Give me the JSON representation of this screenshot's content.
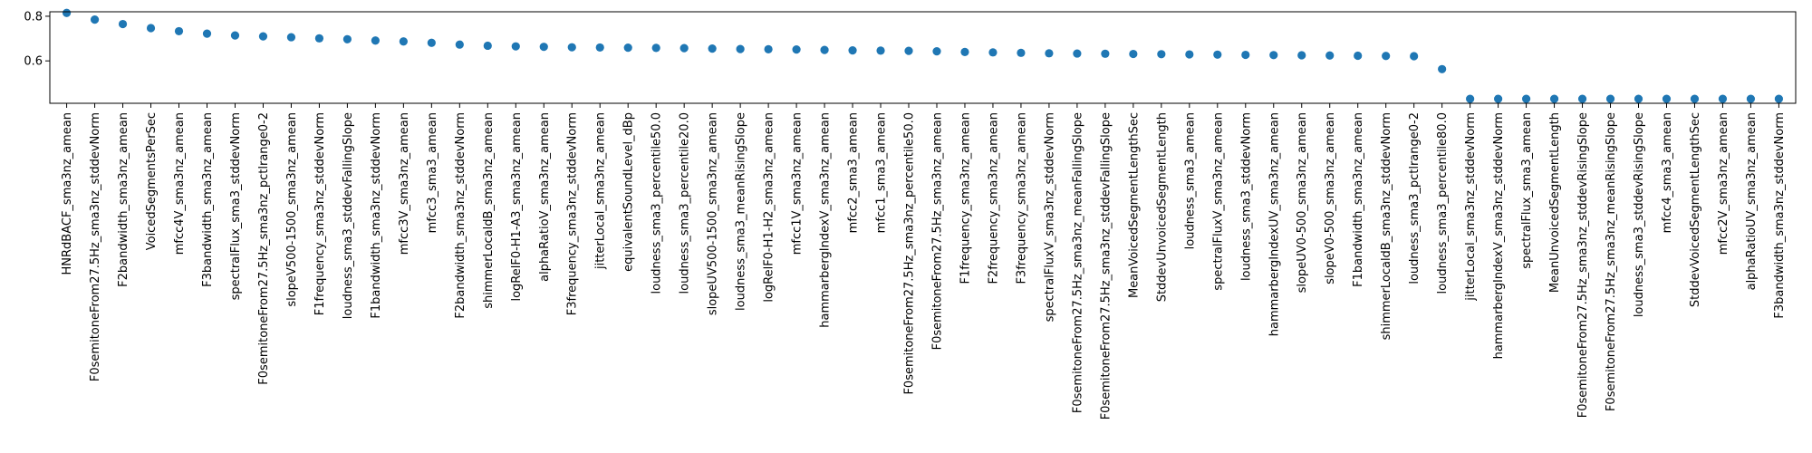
{
  "chart_data": {
    "type": "scatter",
    "title": "",
    "xlabel": "",
    "ylabel": "",
    "ylim": [
      0.41,
      0.82
    ],
    "yticks": [
      0.6,
      0.8
    ],
    "ytick_labels": [
      "0.6",
      "0.8"
    ],
    "grid": false,
    "marker_color": "#1f77b4",
    "categories": [
      "HNRdBACF_sma3nz_amean",
      "F0semitoneFrom27.5Hz_sma3nz_stddevNorm",
      "F2bandwidth_sma3nz_amean",
      "VoicedSegmentsPerSec",
      "mfcc4V_sma3nz_amean",
      "F3bandwidth_sma3nz_amean",
      "spectralFlux_sma3_stddevNorm",
      "F0semitoneFrom27.5Hz_sma3nz_pctlrange0-2",
      "slopeV500-1500_sma3nz_amean",
      "F1frequency_sma3nz_stddevNorm",
      "loudness_sma3_stddevFallingSlope",
      "F1bandwidth_sma3nz_stddevNorm",
      "mfcc3V_sma3nz_amean",
      "mfcc3_sma3_amean",
      "F2bandwidth_sma3nz_stddevNorm",
      "shimmerLocaldB_sma3nz_amean",
      "logRelF0-H1-A3_sma3nz_amean",
      "alphaRatioV_sma3nz_amean",
      "F3frequency_sma3nz_stddevNorm",
      "jitterLocal_sma3nz_amean",
      "equivalentSoundLevel_dBp",
      "loudness_sma3_percentile50.0",
      "loudness_sma3_percentile20.0",
      "slopeUV500-1500_sma3nz_amean",
      "loudness_sma3_meanRisingSlope",
      "logRelF0-H1-H2_sma3nz_amean",
      "mfcc1V_sma3nz_amean",
      "hammarbergIndexV_sma3nz_amean",
      "mfcc2_sma3_amean",
      "mfcc1_sma3_amean",
      "F0semitoneFrom27.5Hz_sma3nz_percentile50.0",
      "F0semitoneFrom27.5Hz_sma3nz_amean",
      "F1frequency_sma3nz_amean",
      "F2frequency_sma3nz_amean",
      "F3frequency_sma3nz_amean",
      "spectralFluxV_sma3nz_stddevNorm",
      "F0semitoneFrom27.5Hz_sma3nz_meanFallingSlope",
      "F0semitoneFrom27.5Hz_sma3nz_stddevFallingSlope",
      "MeanVoicedSegmentLengthSec",
      "StddevUnvoicedSegmentLength",
      "loudness_sma3_amean",
      "spectralFluxV_sma3nz_amean",
      "loudness_sma3_stddevNorm",
      "hammarbergIndexUV_sma3nz_amean",
      "slopeUV0-500_sma3nz_amean",
      "slopeV0-500_sma3nz_amean",
      "F1bandwidth_sma3nz_amean",
      "shimmerLocaldB_sma3nz_stddevNorm",
      "loudness_sma3_pctlrange0-2",
      "loudness_sma3_percentile80.0",
      "jitterLocal_sma3nz_stddevNorm",
      "hammarbergIndexV_sma3nz_stddevNorm",
      "spectralFlux_sma3_amean",
      "MeanUnvoicedSegmentLength",
      "F0semitoneFrom27.5Hz_sma3nz_stddevRisingSlope",
      "F0semitoneFrom27.5Hz_sma3nz_meanRisingSlope",
      "loudness_sma3_stddevRisingSlope",
      "mfcc4_sma3_amean",
      "StddevVoicedSegmentLengthSec",
      "mfcc2V_sma3nz_amean",
      "alphaRatioUV_sma3nz_amean",
      "F3bandwidth_sma3nz_stddevNorm"
    ],
    "values": [
      0.815,
      0.785,
      0.765,
      0.747,
      0.733,
      0.722,
      0.714,
      0.71,
      0.706,
      0.701,
      0.697,
      0.691,
      0.687,
      0.681,
      0.673,
      0.668,
      0.665,
      0.663,
      0.661,
      0.66,
      0.659,
      0.658,
      0.657,
      0.655,
      0.653,
      0.652,
      0.651,
      0.649,
      0.647,
      0.646,
      0.645,
      0.643,
      0.64,
      0.638,
      0.636,
      0.634,
      0.633,
      0.632,
      0.631,
      0.63,
      0.629,
      0.628,
      0.627,
      0.626,
      0.625,
      0.624,
      0.623,
      0.622,
      0.621,
      0.563,
      0.43,
      0.43,
      0.43,
      0.43,
      0.43,
      0.43,
      0.43,
      0.43,
      0.43,
      0.43,
      0.43,
      0.43
    ]
  }
}
